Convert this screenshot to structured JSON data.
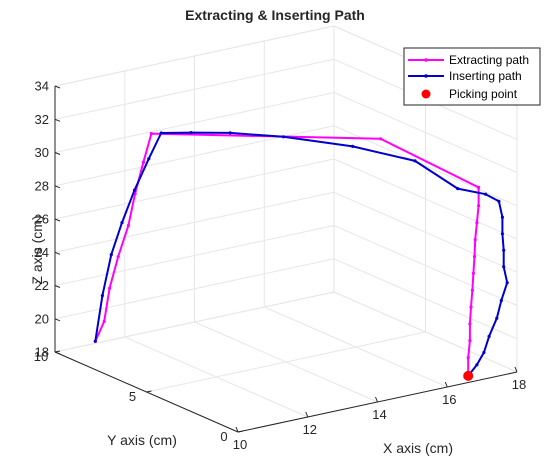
{
  "chart_data": {
    "type": "line",
    "title": "Extracting & Inserting Path",
    "xlabel": "X axis (cm)",
    "ylabel": "Y axis (cm)",
    "zlabel": "Z axis (cm)",
    "xlim": [
      10,
      18
    ],
    "ylim": [
      0,
      10
    ],
    "zlim": [
      18,
      34
    ],
    "xticks": [
      "10",
      "12",
      "14",
      "16",
      "18"
    ],
    "yticks": [
      "0",
      "5",
      "10"
    ],
    "zticks": [
      "18",
      "20",
      "22",
      "24",
      "26",
      "28",
      "30",
      "32",
      "34"
    ],
    "grid": true,
    "legend_position": "top-right",
    "colors": {
      "extracting": "#ff00ff",
      "inserting": "#0000cc",
      "picking": "#ff0000",
      "grid": "#e6e6e6",
      "axis": "#262626"
    },
    "series": [
      {
        "name": "Extracting path",
        "points": [
          [
            16.6,
            0.0,
            18.4
          ],
          [
            16.6,
            0.0,
            19.5
          ],
          [
            16.65,
            0.0,
            20.5
          ],
          [
            16.65,
            0.0,
            21.5
          ],
          [
            16.68,
            0.0,
            22.5
          ],
          [
            16.72,
            0.0,
            23.5
          ],
          [
            16.75,
            0.0,
            24.5
          ],
          [
            16.78,
            0.0,
            25.5
          ],
          [
            16.8,
            0.0,
            26.5
          ],
          [
            16.85,
            0.0,
            27.5
          ],
          [
            16.9,
            0.0,
            28.5
          ],
          [
            16.9,
            0.0,
            29.6
          ],
          [
            15.4,
            2.5,
            32.0
          ],
          [
            10.64,
            5.95,
            32.8
          ],
          [
            10.54,
            6.2,
            31.0
          ],
          [
            10.46,
            6.5,
            29.0
          ],
          [
            10.4,
            6.75,
            27.0
          ],
          [
            10.29,
            7.1,
            25.0
          ],
          [
            10.2,
            7.4,
            23.0
          ],
          [
            10.1,
            7.5,
            21.0
          ],
          [
            10.0,
            7.8,
            19.7
          ]
        ]
      },
      {
        "name": "Inserting path",
        "points": [
          [
            16.6,
            0.0,
            18.4
          ],
          [
            16.85,
            0.0,
            18.95
          ],
          [
            17.05,
            0.0,
            19.6
          ],
          [
            17.2,
            0.0,
            20.5
          ],
          [
            17.42,
            0.0,
            21.5
          ],
          [
            17.55,
            0.0,
            22.5
          ],
          [
            17.72,
            0.0,
            23.5
          ],
          [
            17.62,
            0.0,
            24.5
          ],
          [
            17.62,
            0.0,
            25.5
          ],
          [
            17.58,
            0.0,
            26.5
          ],
          [
            17.58,
            0.0,
            27.5
          ],
          [
            17.48,
            0.0,
            28.5
          ],
          [
            17.1,
            0.0,
            29.1
          ],
          [
            16.3,
            0.0,
            29.8
          ],
          [
            15.6,
            1.0,
            31.3
          ],
          [
            14.6,
            2.5,
            31.9
          ],
          [
            13.4,
            4.0,
            32.3
          ],
          [
            12.4,
            5.0,
            32.5
          ],
          [
            11.7,
            5.8,
            32.45
          ],
          [
            11.0,
            6.1,
            32.6
          ],
          [
            10.8,
            6.4,
            31.0
          ],
          [
            10.6,
            6.8,
            29.0
          ],
          [
            10.4,
            7.1,
            27.0
          ],
          [
            10.25,
            7.4,
            25.0
          ],
          [
            10.1,
            7.6,
            22.5
          ],
          [
            10.0,
            7.8,
            19.7
          ]
        ]
      },
      {
        "name": "Picking point",
        "points": [
          [
            16.6,
            0.0,
            18.4
          ]
        ]
      }
    ]
  }
}
